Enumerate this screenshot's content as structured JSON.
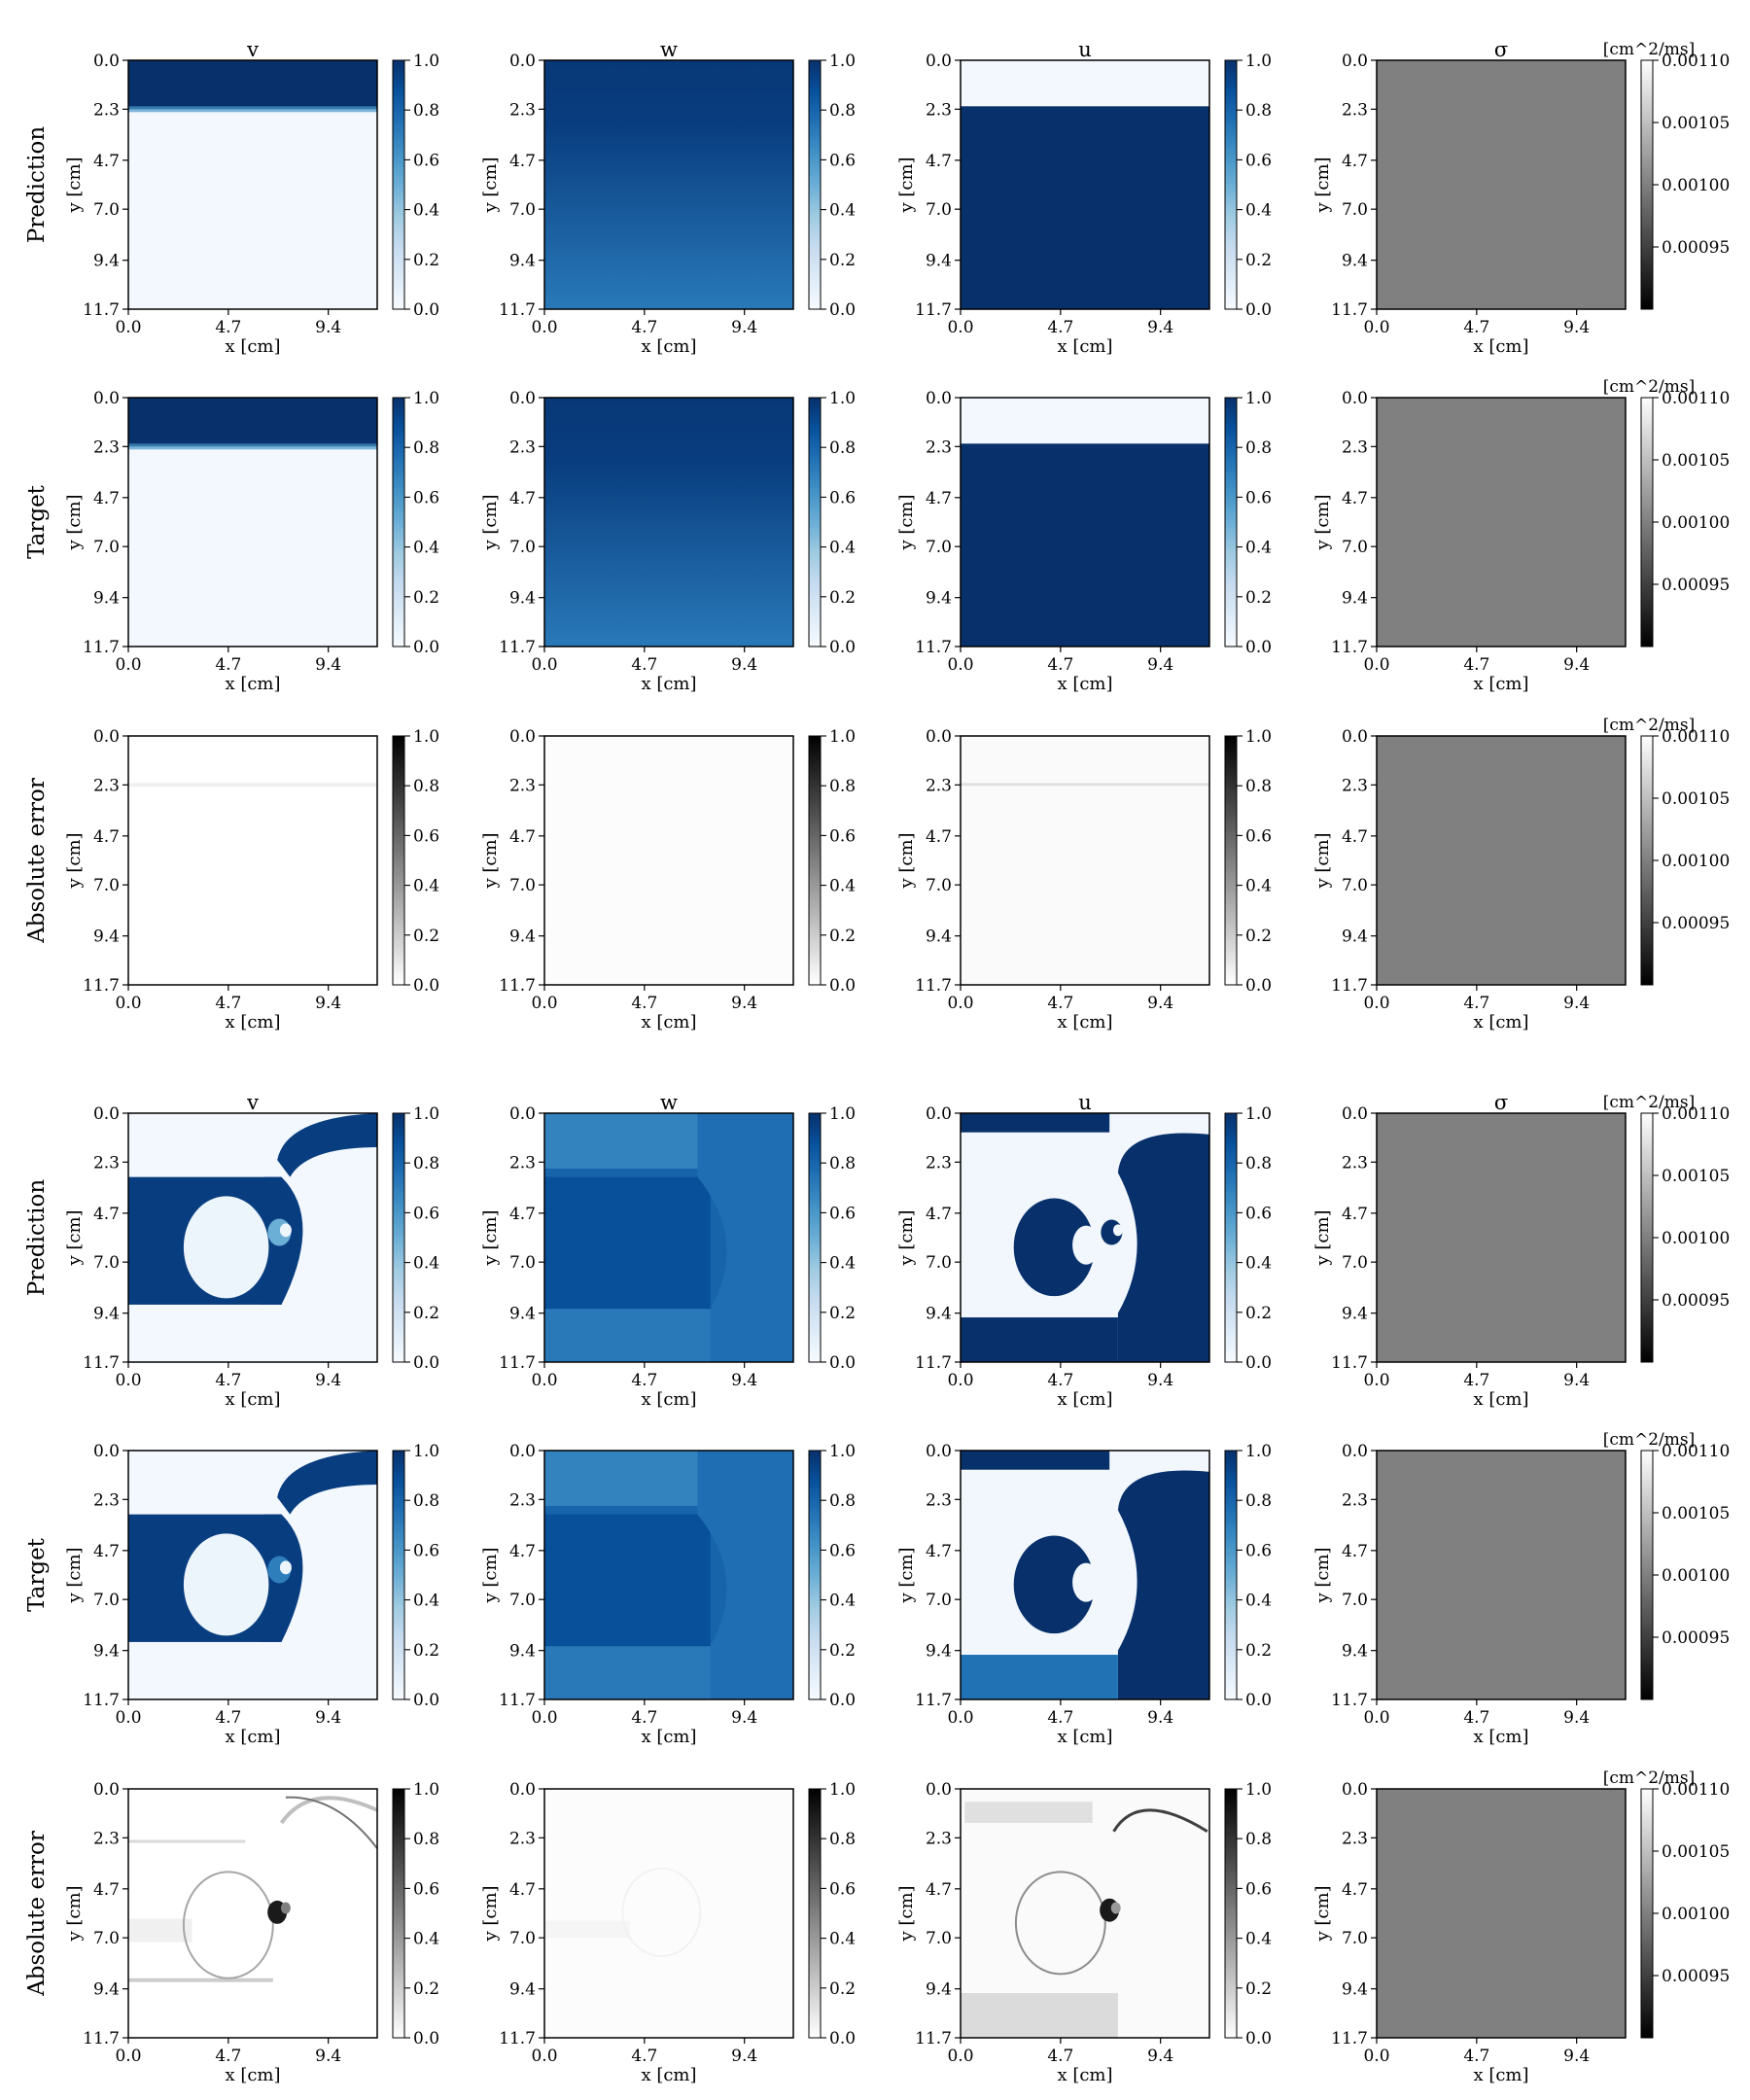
{
  "chart_data": {
    "type": "heatmap",
    "columns": [
      {
        "key": "v",
        "title": "v"
      },
      {
        "key": "w",
        "title": "w"
      },
      {
        "key": "u",
        "title": "u"
      },
      {
        "key": "sigma",
        "title": "σ"
      }
    ],
    "rows": [
      "Prediction",
      "Target",
      "Absolute error",
      "Prediction",
      "Target",
      "Absolute error"
    ],
    "xlabel": "x [cm]",
    "ylabel": "y [cm]",
    "x_ticks": [
      "0.0",
      "4.7",
      "9.4"
    ],
    "y_ticks": [
      "0.0",
      "2.3",
      "4.7",
      "7.0",
      "9.4",
      "11.7"
    ],
    "xlim": [
      0,
      11.7
    ],
    "ylim": [
      0,
      11.7
    ],
    "colorbar_ticks": [
      "1.0",
      "0.8",
      "0.6",
      "0.4",
      "0.2",
      "0.0"
    ],
    "colorbar_range": [
      0,
      1
    ],
    "sigma_colorbar_ticks": [
      "0.00110",
      "0.00105",
      "0.00100",
      "0.00095"
    ],
    "sigma_colorbar_range": [
      0.0009,
      0.0011
    ],
    "sigma_unit": "[cm^2/ms]",
    "sigma_value": 0.001,
    "colormaps": {
      "field": [
        "#f7fbff",
        "#deebf7",
        "#c6dbef",
        "#9ecae1",
        "#6baed6",
        "#4292c6",
        "#2171b5",
        "#08519c",
        "#08306b"
      ],
      "error": [
        "#ffffff",
        "#000000"
      ],
      "sigma": [
        "#000000",
        "#ffffff"
      ]
    },
    "sample_1": {
      "v": {
        "front_y": 2.3,
        "above": 1.0,
        "below": 0.02
      },
      "w": {
        "top": 0.97,
        "bottom": 0.72
      },
      "u": {
        "front_y": 2.3,
        "above": 0.02,
        "below": 1.0
      },
      "error_v_max": 0.06,
      "error_w_max": 0.01,
      "error_u_max": 0.12
    },
    "sample_2": {
      "v_level": 0.95,
      "w_level": 0.8,
      "u_level": 1.0,
      "u_bottom_band_target": 0.75,
      "error_peak": 0.9
    }
  }
}
